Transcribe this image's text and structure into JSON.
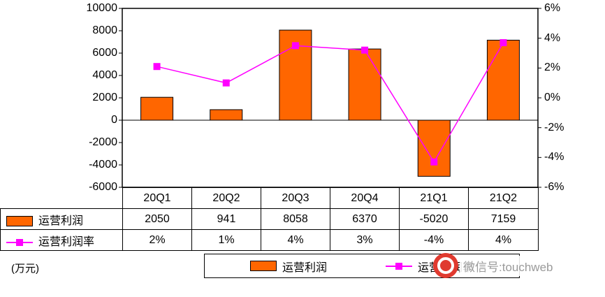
{
  "unit_label": "(万元)",
  "watermark": {
    "text": "微信号:touchweb"
  },
  "chart_data": {
    "type": "bar+line",
    "categories": [
      "20Q1",
      "20Q2",
      "20Q3",
      "20Q4",
      "21Q1",
      "21Q2"
    ],
    "series": [
      {
        "name": "运营利润",
        "type": "bar",
        "axis": "left",
        "color": "#ff6600",
        "values": [
          2050,
          941,
          8058,
          6370,
          -5020,
          7159
        ]
      },
      {
        "name": "运营利润率",
        "type": "line",
        "axis": "right",
        "color": "#ff00ff",
        "values_pct": [
          2.1,
          1.0,
          3.5,
          3.2,
          -4.3,
          3.7
        ],
        "display": [
          "2%",
          "1%",
          "4%",
          "3%",
          "-4%",
          "4%"
        ]
      }
    ],
    "left_axis": {
      "min": -6000,
      "max": 10000,
      "step": 2000,
      "tick_values": [
        10000,
        8000,
        6000,
        4000,
        2000,
        0,
        -2000,
        -4000,
        -6000
      ]
    },
    "right_axis": {
      "min": -6,
      "max": 6,
      "step": 2,
      "tick_values": [
        6,
        4,
        2,
        0,
        -2,
        -4,
        -6
      ],
      "tick_labels": [
        "6%",
        "4%",
        "2%",
        "0%",
        "-2%",
        "-4%",
        "-6%"
      ]
    },
    "grid": false,
    "legend_position": "bottom"
  }
}
